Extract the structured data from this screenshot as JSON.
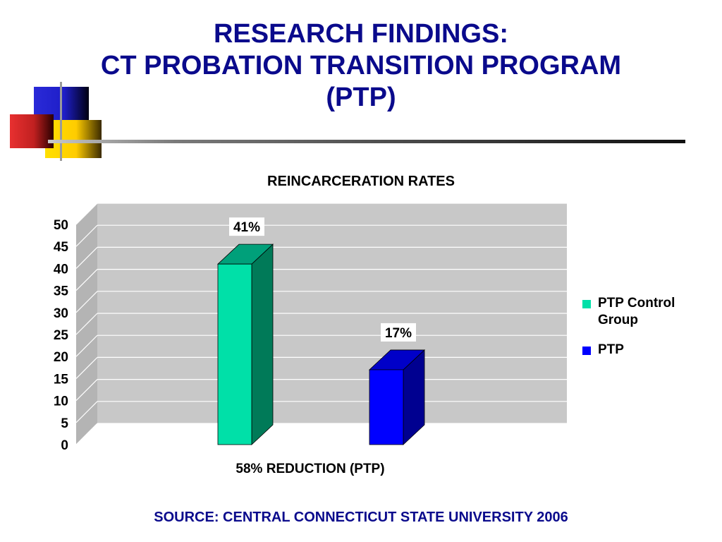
{
  "slide": {
    "title_lines": [
      "RESEARCH FINDINGS:",
      "CT PROBATION TRANSITION PROGRAM",
      "(PTP)"
    ],
    "footer_note": "58% REDUCTION (PTP)",
    "source": "SOURCE:  CENTRAL CONNECTICUT STATE UNIVERSITY 2006"
  },
  "chart_data": {
    "type": "bar",
    "title": "REINCARCERATION RATES",
    "categories": [
      "",
      ""
    ],
    "series": [
      {
        "name": "PTP Control Group",
        "values": [
          41,
          null
        ],
        "data_label": "41%",
        "color": "#00e0a8",
        "side_color": "#007a58",
        "top_color": "#00a07a"
      },
      {
        "name": "PTP",
        "values": [
          null,
          17
        ],
        "data_label": "17%",
        "color": "#0000ff",
        "side_color": "#000090",
        "top_color": "#0000c8"
      }
    ],
    "ylim": [
      0,
      50
    ],
    "yticks": [
      "0",
      "5",
      "10",
      "15",
      "20",
      "25",
      "30",
      "35",
      "40",
      "45",
      "50"
    ],
    "grid": true,
    "legend": "right",
    "wall_color": "#c8c8c8"
  }
}
